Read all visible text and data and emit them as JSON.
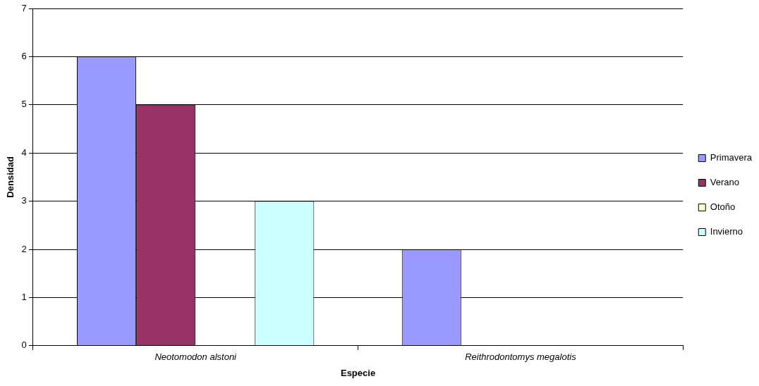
{
  "chart_data": {
    "type": "bar",
    "xlabel": "Especie",
    "ylabel": "Densidad",
    "categories": [
      "Neotomodon alstoni",
      "Reithrodontomys megalotis"
    ],
    "series": [
      {
        "name": "Primavera",
        "color": "#9999ff",
        "values": [
          6,
          2
        ]
      },
      {
        "name": "Verano",
        "color": "#993366",
        "values": [
          5,
          0
        ]
      },
      {
        "name": "Otoño",
        "color": "#ffffcc",
        "values": [
          0,
          0
        ]
      },
      {
        "name": "Invierno",
        "color": "#ccffff",
        "values": [
          3,
          0
        ]
      }
    ],
    "ylim": [
      0,
      7
    ],
    "yticks": [
      0,
      1,
      2,
      3,
      4,
      5,
      6,
      7
    ],
    "grid": "y",
    "legend": "right"
  }
}
